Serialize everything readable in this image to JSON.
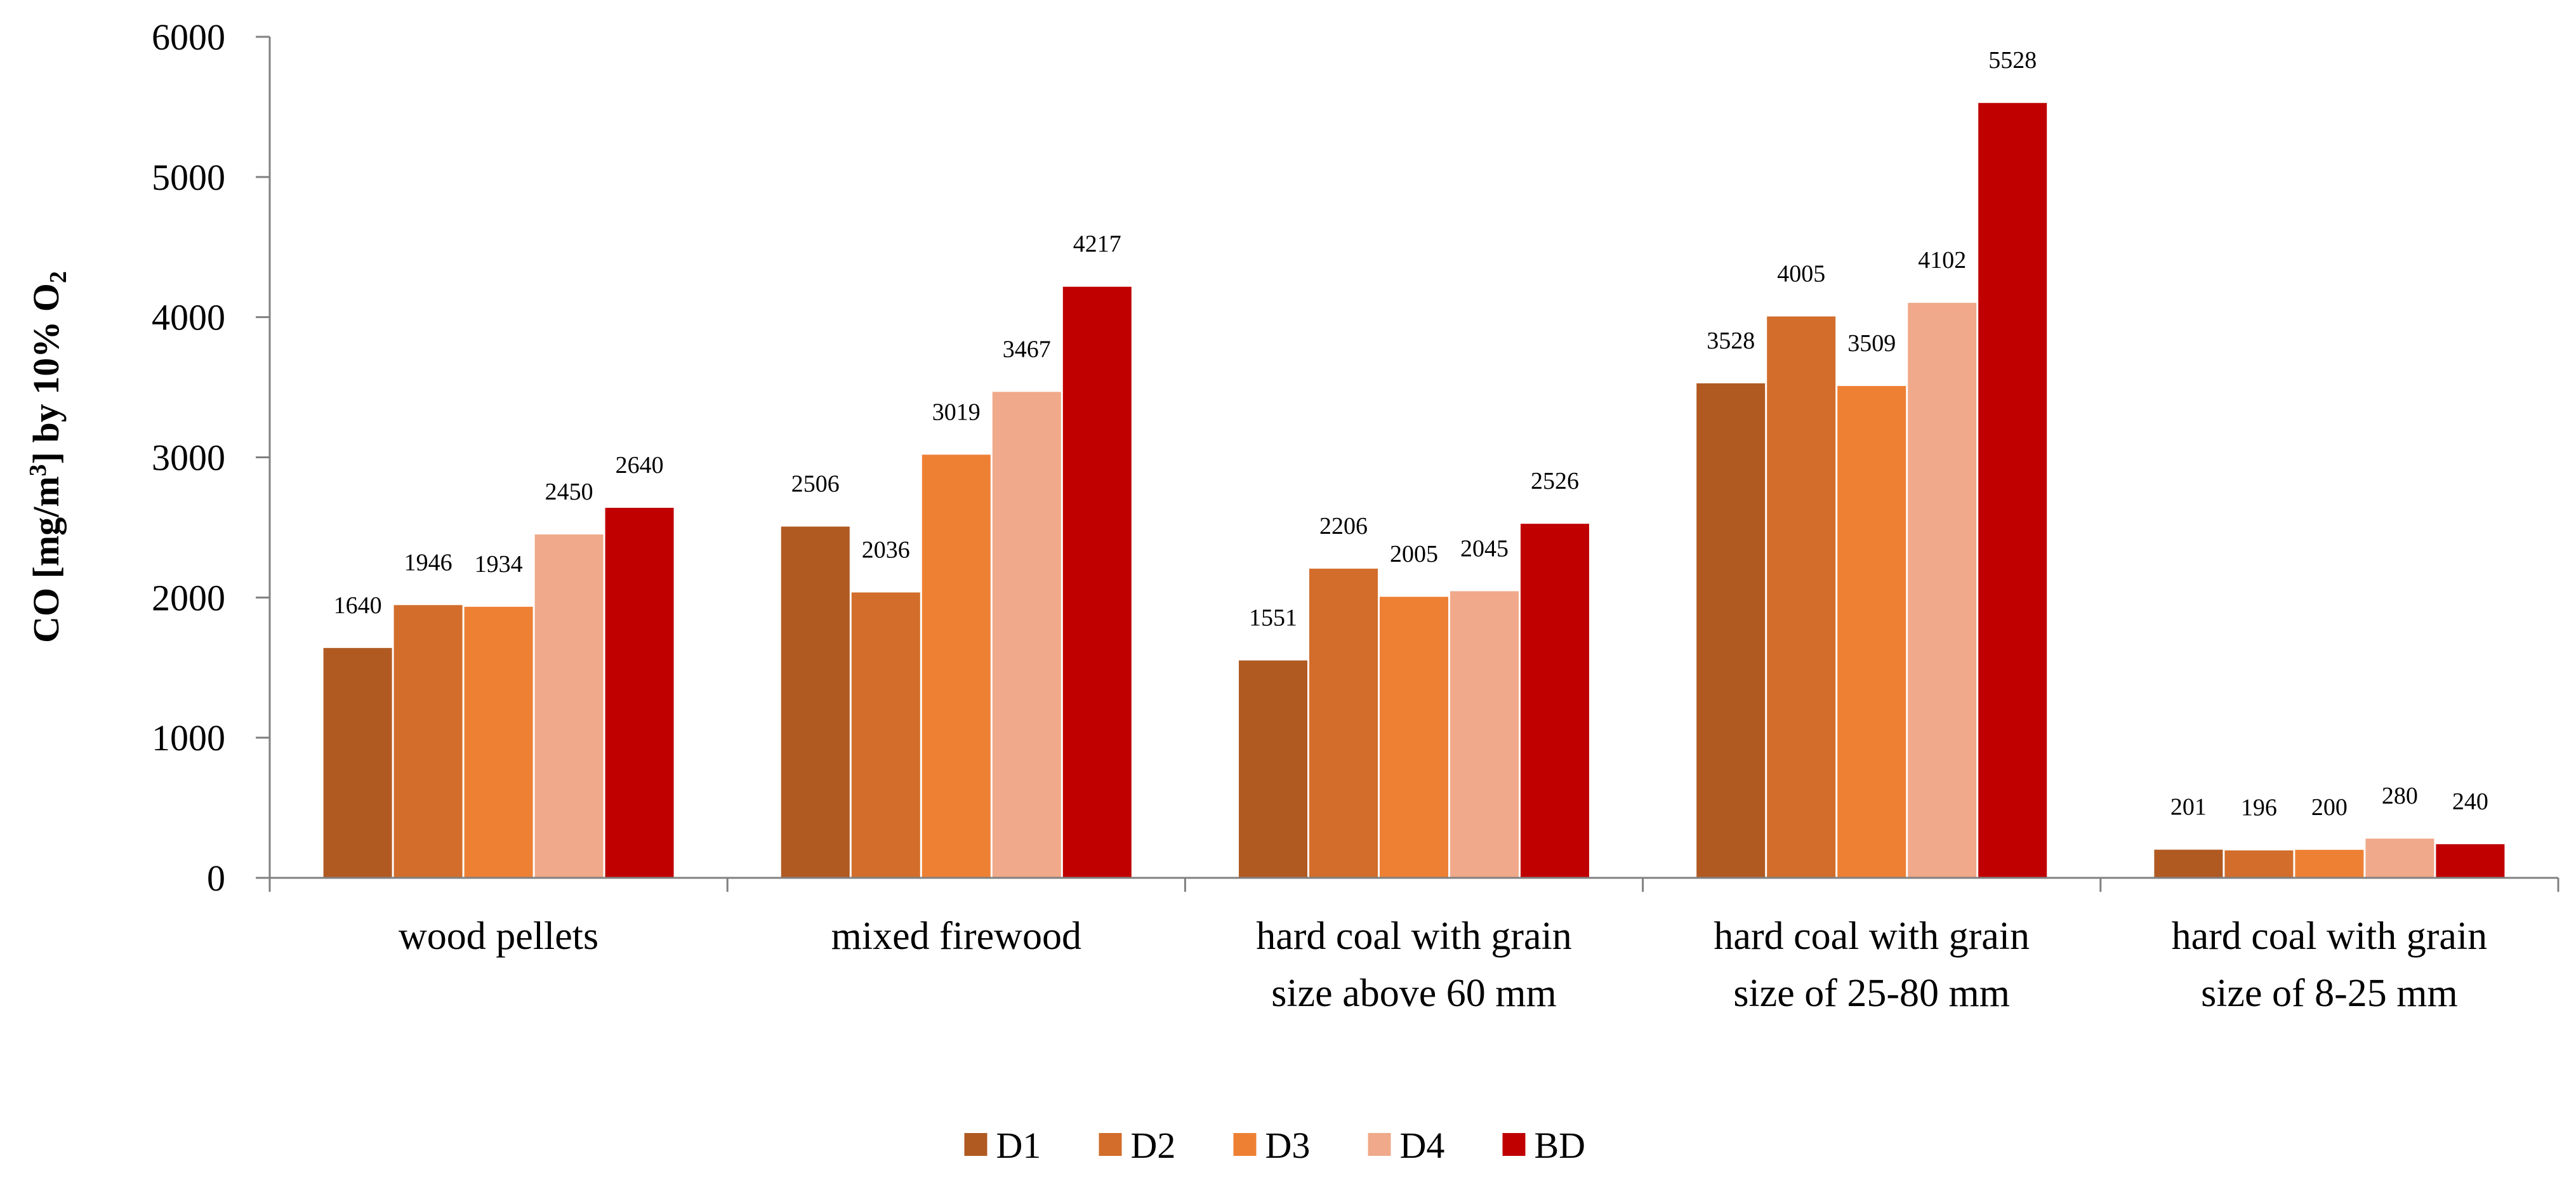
{
  "chart_data": {
    "type": "bar",
    "title": "",
    "xlabel": "",
    "ylabel": {
      "prefix": "CO [mg/m",
      "sup": "3",
      "middle": "] by 10% O",
      "sub": "2"
    },
    "ylim": [
      0,
      6000
    ],
    "yticks": [
      0,
      1000,
      2000,
      3000,
      4000,
      5000,
      6000
    ],
    "grid": false,
    "legend_position": "bottom-center",
    "categories": [
      [
        "wood pellets"
      ],
      [
        "mixed firewood"
      ],
      [
        "hard coal with grain",
        "size above 60 mm"
      ],
      [
        "hard coal with grain",
        "size of 25-80 mm"
      ],
      [
        "hard coal with grain",
        "size of 8-25 mm"
      ]
    ],
    "series": [
      {
        "name": "D1",
        "color": "#B05A22",
        "values": [
          1640,
          2506,
          1551,
          3528,
          201
        ]
      },
      {
        "name": "D2",
        "color": "#D26D2B",
        "values": [
          1946,
          2036,
          2206,
          4005,
          196
        ]
      },
      {
        "name": "D3",
        "color": "#EE8034",
        "values": [
          1934,
          3019,
          2005,
          3509,
          200
        ]
      },
      {
        "name": "D4",
        "color": "#F0A98A",
        "values": [
          2450,
          3467,
          2045,
          4102,
          280
        ]
      },
      {
        "name": "BD",
        "color": "#C00000",
        "values": [
          2640,
          4217,
          2526,
          5528,
          240
        ]
      }
    ]
  }
}
